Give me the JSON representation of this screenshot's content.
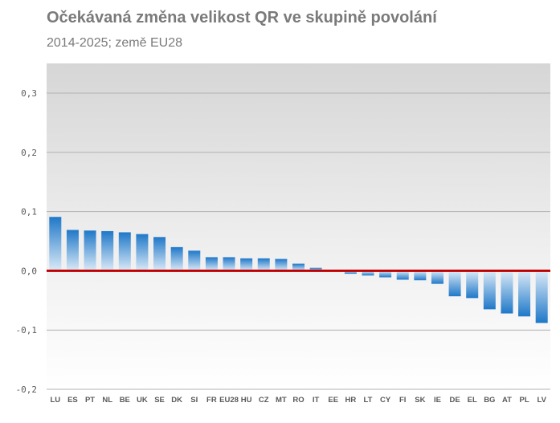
{
  "chart_data": {
    "type": "bar",
    "title": "Očekávaná změna velikost QR ve skupině povolání",
    "subtitle": "2014-2025; země EU28",
    "xlabel": "",
    "ylabel": "",
    "ylim": [
      -0.2,
      0.3
    ],
    "yticks": [
      {
        "value": 0.3,
        "label": "0,3"
      },
      {
        "value": 0.2,
        "label": "0,2"
      },
      {
        "value": 0.1,
        "label": "0,1"
      },
      {
        "value": 0.0,
        "label": "0,0"
      },
      {
        "value": -0.1,
        "label": "-0,1"
      },
      {
        "value": -0.2,
        "label": "-0,2"
      }
    ],
    "categories": [
      "LU",
      "ES",
      "PT",
      "NL",
      "BE",
      "UK",
      "SE",
      "DK",
      "SI",
      "FR",
      "EU28",
      "HU",
      "CZ",
      "MT",
      "RO",
      "IT",
      "EE",
      "HR",
      "LT",
      "CY",
      "FI",
      "SK",
      "IE",
      "DE",
      "EL",
      "BG",
      "AT",
      "PL",
      "LV"
    ],
    "values": [
      0.091,
      0.069,
      0.068,
      0.067,
      0.065,
      0.062,
      0.057,
      0.04,
      0.034,
      0.023,
      0.023,
      0.021,
      0.021,
      0.02,
      0.012,
      0.005,
      0.0,
      -0.005,
      -0.008,
      -0.011,
      -0.015,
      -0.016,
      -0.022,
      -0.043,
      -0.046,
      -0.065,
      -0.072,
      -0.077,
      -0.088
    ],
    "grid": true,
    "legend": "none",
    "colors": {
      "bar": "#1f78c8",
      "bar_fade": "#dbeaf7",
      "zero_line": "#c00000",
      "grid": "#b3b3b3",
      "plot_bg_top": "#d6d6d6",
      "plot_bg_bottom": "#ffffff"
    }
  }
}
